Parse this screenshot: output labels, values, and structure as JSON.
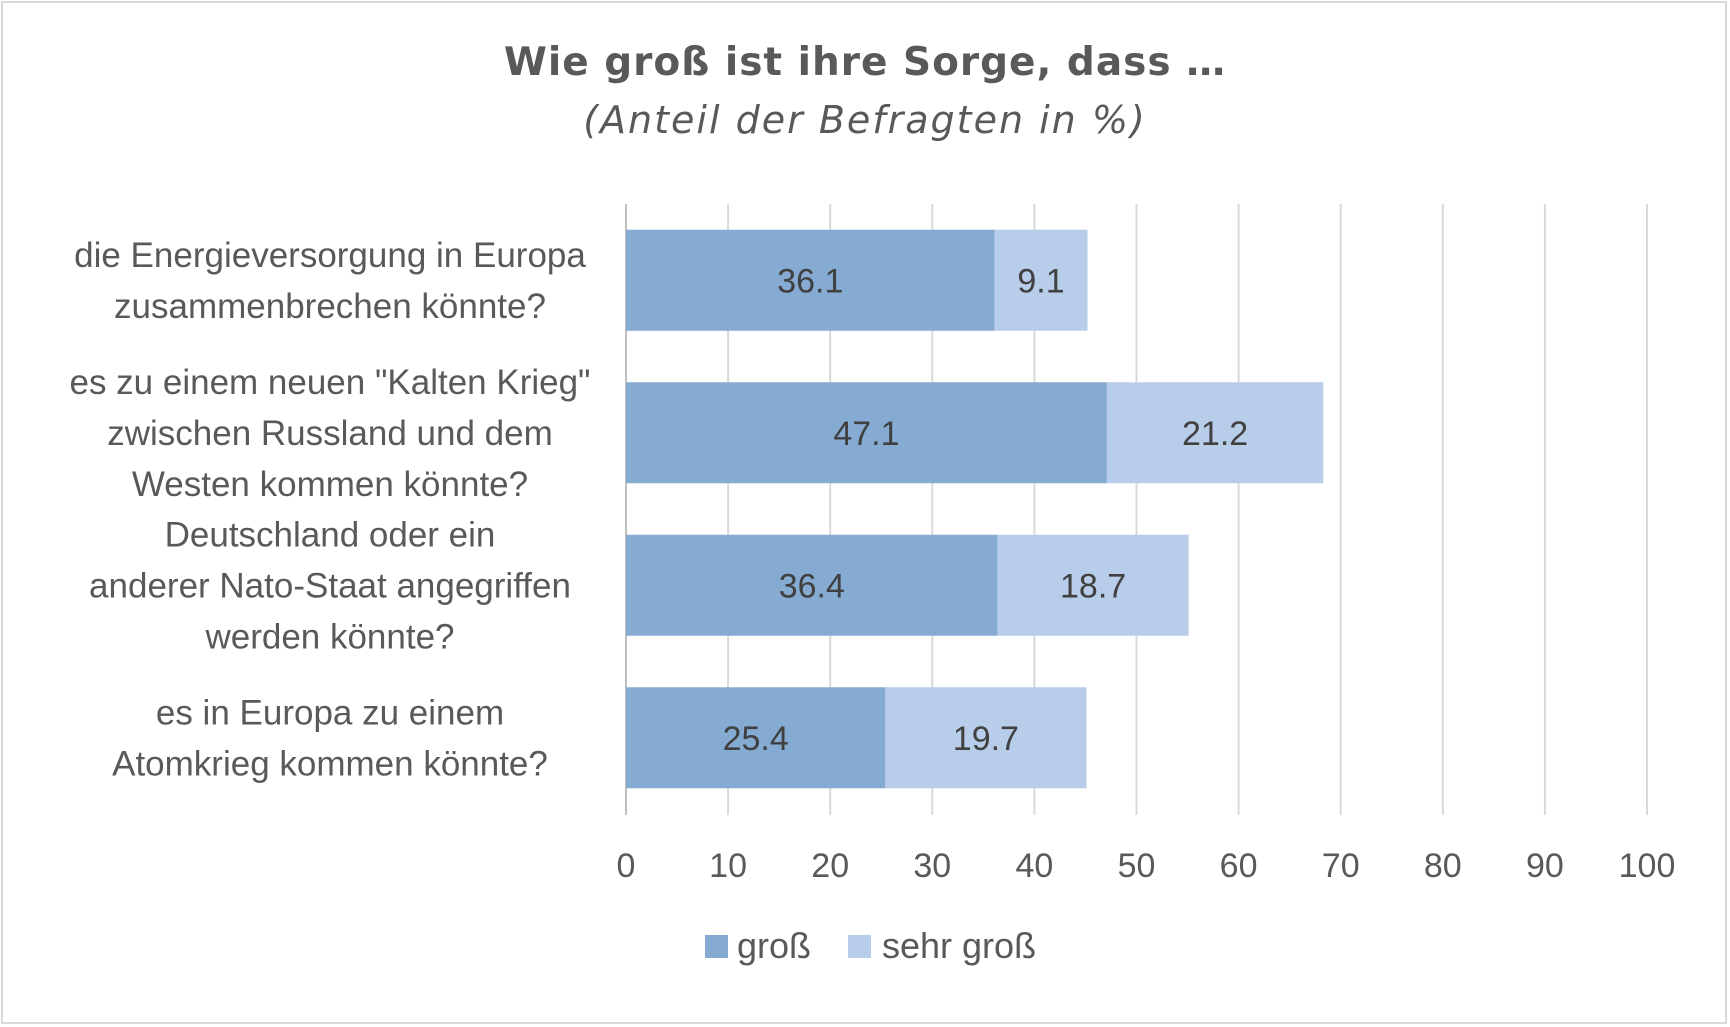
{
  "chart_data": {
    "type": "bar",
    "orientation": "horizontal",
    "stacked": true,
    "title": "Wie groß ist ihre Sorge, dass …",
    "subtitle": "(Anteil der Befragten in %)",
    "categories": [
      [
        "die Energieversorgung in Europa",
        "zusammenbrechen könnte?"
      ],
      [
        "es zu einem neuen \"Kalten Krieg\"",
        "zwischen Russland und dem",
        "Westen kommen könnte?"
      ],
      [
        "Deutschland oder ein",
        "anderer Nato-Staat angegriffen",
        "werden könnte?"
      ],
      [
        "es in Europa zu einem",
        "Atomkrieg kommen könnte?"
      ]
    ],
    "series": [
      {
        "name": "groß",
        "values": [
          36.1,
          47.1,
          36.4,
          25.4
        ],
        "color": "#86abd3"
      },
      {
        "name": "sehr groß",
        "values": [
          9.1,
          21.2,
          18.7,
          19.7
        ],
        "color": "#b7cde9"
      }
    ],
    "xlim": [
      0,
      100
    ],
    "xticks": [
      0,
      10,
      20,
      30,
      40,
      50,
      60,
      70,
      80,
      90,
      100
    ],
    "grid": true,
    "legend": "bottom",
    "data_labels": true
  }
}
